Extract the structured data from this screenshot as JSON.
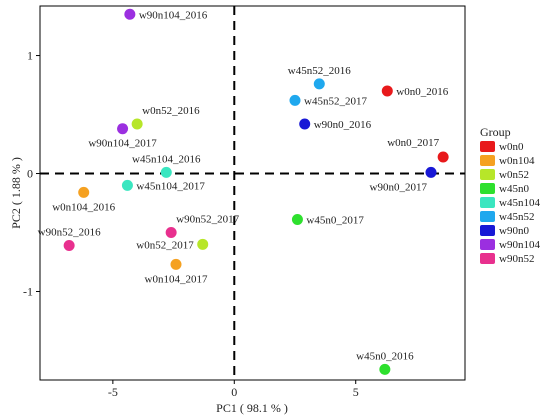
{
  "chart_data": {
    "type": "scatter",
    "xlabel": "PC1 ( 98.1 % )",
    "ylabel": "PC2 ( 1.88 % )",
    "xlim": [
      -8.0,
      9.5
    ],
    "ylim": [
      -1.75,
      1.42
    ],
    "x_ticks": [
      -5,
      0,
      5
    ],
    "y_ticks": [
      -1,
      0,
      1
    ],
    "reference_lines": {
      "x": 0,
      "y": 0,
      "style": "dashed"
    },
    "grid": false,
    "legend": {
      "title": "Group",
      "placement": "right",
      "entries": [
        {
          "name": "w0n0",
          "color": "#e8191b"
        },
        {
          "name": "w0n104",
          "color": "#f5a121"
        },
        {
          "name": "w0n52",
          "color": "#b7e629"
        },
        {
          "name": "w45n0",
          "color": "#2ee02e"
        },
        {
          "name": "w45n104",
          "color": "#3ae6c0"
        },
        {
          "name": "w45n52",
          "color": "#1fa8ee"
        },
        {
          "name": "w90n0",
          "color": "#1818d6"
        },
        {
          "name": "w90n104",
          "color": "#9b2fe0"
        },
        {
          "name": "w90n52",
          "color": "#e8308e"
        }
      ]
    },
    "points": [
      {
        "label": "w0n0_2016",
        "group": "w0n0",
        "x": 6.3,
        "y": 0.7,
        "label_pos": "right"
      },
      {
        "label": "w0n0_2017",
        "group": "w0n0",
        "x": 8.6,
        "y": 0.14,
        "label_pos": "above-left"
      },
      {
        "label": "w90n0_2017",
        "group": "w90n0",
        "x": 8.1,
        "y": 0.01,
        "label_pos": "below-left"
      },
      {
        "label": "w45n52_2016",
        "group": "w45n52",
        "x": 3.5,
        "y": 0.76,
        "label_pos": "above"
      },
      {
        "label": "w45n52_2017",
        "group": "w45n52",
        "x": 2.5,
        "y": 0.62,
        "label_pos": "right"
      },
      {
        "label": "w90n0_2016",
        "group": "w90n0",
        "x": 2.9,
        "y": 0.42,
        "label_pos": "right"
      },
      {
        "label": "w90n104_2016",
        "group": "w90n104",
        "x": -4.3,
        "y": 1.35,
        "label_pos": "right"
      },
      {
        "label": "w0n52_2016",
        "group": "w0n52",
        "x": -4.0,
        "y": 0.42,
        "label_pos": "above-right"
      },
      {
        "label": "w90n104_2017",
        "group": "w90n104",
        "x": -4.6,
        "y": 0.38,
        "label_pos": "below"
      },
      {
        "label": "w45n104_2016",
        "group": "w45n104",
        "x": -2.8,
        "y": 0.01,
        "label_pos": "above"
      },
      {
        "label": "w45n104_2017",
        "group": "w45n104",
        "x": -4.4,
        "y": -0.1,
        "label_pos": "right"
      },
      {
        "label": "w0n104_2016",
        "group": "w0n104",
        "x": -6.2,
        "y": -0.16,
        "label_pos": "below"
      },
      {
        "label": "w90n52_2016",
        "group": "w90n52",
        "x": -6.8,
        "y": -0.61,
        "label_pos": "above"
      },
      {
        "label": "w90n52_2017",
        "group": "w90n52",
        "x": -2.6,
        "y": -0.5,
        "label_pos": "above-right"
      },
      {
        "label": "w0n52_2017",
        "group": "w0n52",
        "x": -1.3,
        "y": -0.6,
        "label_pos": "left"
      },
      {
        "label": "w0n104_2017",
        "group": "w0n104",
        "x": -2.4,
        "y": -0.77,
        "label_pos": "below"
      },
      {
        "label": "w45n0_2017",
        "group": "w45n0",
        "x": 2.6,
        "y": -0.39,
        "label_pos": "right"
      },
      {
        "label": "w45n0_2016",
        "group": "w45n0",
        "x": 6.2,
        "y": -1.66,
        "label_pos": "above"
      }
    ]
  }
}
